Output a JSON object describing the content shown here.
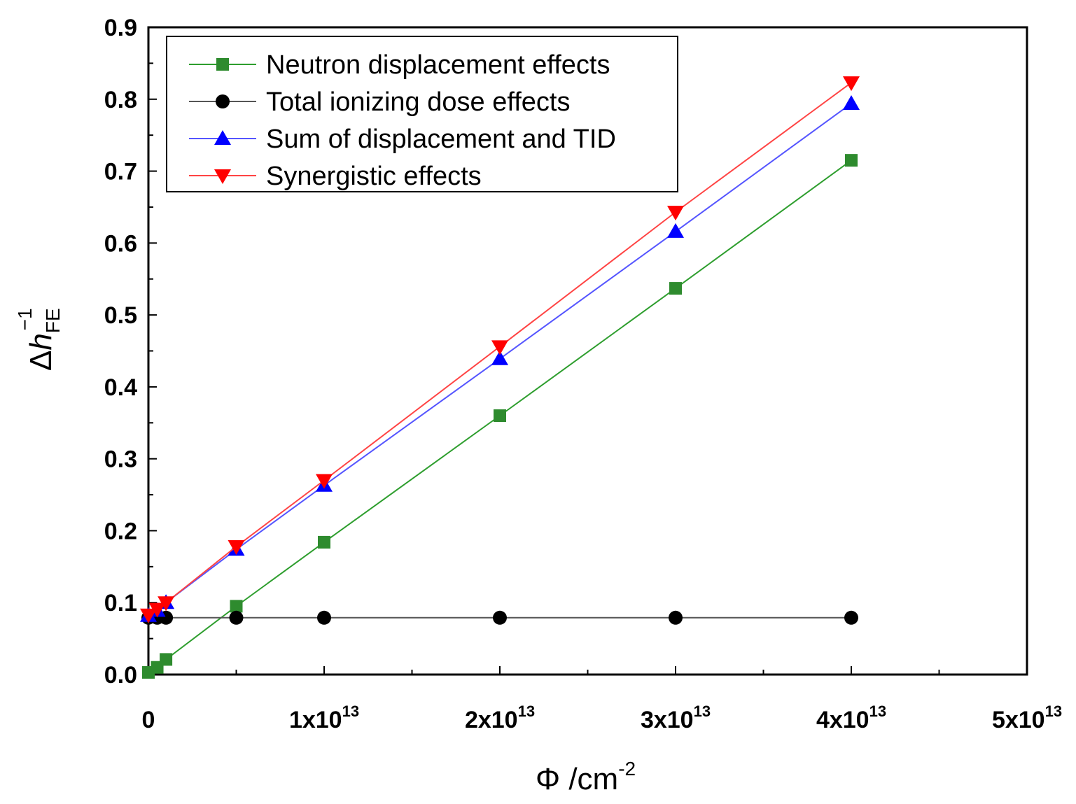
{
  "chart_data": {
    "type": "line",
    "title": "",
    "xlabel": {
      "base": "Φ /cm",
      "sup": "-2"
    },
    "ylabel": {
      "base": "Δ",
      "italic": "h",
      "sub": "FE",
      "sup": "−1"
    },
    "xlim": [
      0,
      50000000000000.0
    ],
    "ylim": [
      0,
      0.9
    ],
    "grid": false,
    "legend_position": "top-left",
    "x_ticks": [
      {
        "value": 0,
        "label": "0",
        "sup": ""
      },
      {
        "value": 10000000000000.0,
        "label": "1x10",
        "sup": "13"
      },
      {
        "value": 20000000000000.0,
        "label": "2x10",
        "sup": "13"
      },
      {
        "value": 30000000000000.0,
        "label": "3x10",
        "sup": "13"
      },
      {
        "value": 40000000000000.0,
        "label": "4x10",
        "sup": "13"
      },
      {
        "value": 50000000000000.0,
        "label": "5x10",
        "sup": "13"
      }
    ],
    "y_ticks": [
      {
        "value": 0.0,
        "label": "0.0"
      },
      {
        "value": 0.1,
        "label": "0.1"
      },
      {
        "value": 0.2,
        "label": "0.2"
      },
      {
        "value": 0.3,
        "label": "0.3"
      },
      {
        "value": 0.4,
        "label": "0.4"
      },
      {
        "value": 0.5,
        "label": "0.5"
      },
      {
        "value": 0.6,
        "label": "0.6"
      },
      {
        "value": 0.7,
        "label": "0.7"
      },
      {
        "value": 0.8,
        "label": "0.8"
      },
      {
        "value": 0.9,
        "label": "0.9"
      }
    ],
    "x": [
      0,
      500000000000.0,
      1000000000000.0,
      5000000000000.0,
      10000000000000.0,
      20000000000000.0,
      30000000000000.0,
      40000000000000.0
    ],
    "series": [
      {
        "name": "Neutron displacement effects",
        "color": "#2e8b2e",
        "line_color": "#2e9e2e",
        "marker": "square",
        "values": [
          0.003,
          0.01,
          0.021,
          0.095,
          0.184,
          0.36,
          0.537,
          0.715
        ]
      },
      {
        "name": "Total ionizing dose effects",
        "color": "#000000",
        "line_color": "#555555",
        "marker": "circle",
        "values": [
          0.079,
          0.079,
          0.079,
          0.079,
          0.079,
          0.079,
          0.079,
          0.079
        ]
      },
      {
        "name": "Sum of displacement and TID",
        "color": "#0000ff",
        "line_color": "#5555ff",
        "marker": "triangle-up",
        "values": [
          0.082,
          0.089,
          0.1,
          0.174,
          0.263,
          0.439,
          0.616,
          0.794
        ]
      },
      {
        "name": "Synergistic effects",
        "color": "#ff0000",
        "line_color": "#ff4444",
        "marker": "triangle-down",
        "values": [
          0.083,
          0.091,
          0.1,
          0.178,
          0.27,
          0.456,
          0.643,
          0.823
        ]
      }
    ]
  }
}
